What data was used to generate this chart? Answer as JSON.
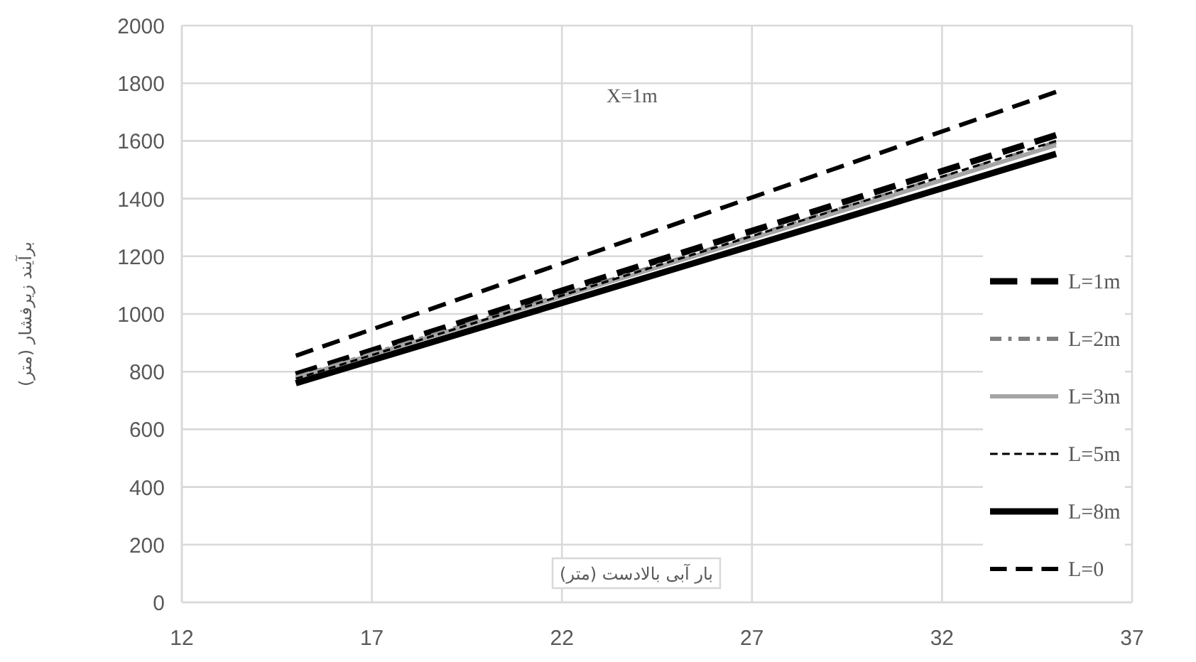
{
  "chart_data": {
    "type": "line",
    "xlabel": "بار آبی بالادست (متر)",
    "ylabel": "برآیند زیرفشار (متر)",
    "annotations": [
      "X=1m"
    ],
    "x": [
      15,
      35
    ],
    "series": [
      {
        "name": "L=1m",
        "color": "#000000",
        "line_style": "dashed",
        "values": [
          790,
          1620
        ]
      },
      {
        "name": "L=2m",
        "color": "#7f7f7f",
        "line_style": "dashed",
        "values": [
          780,
          1595
        ]
      },
      {
        "name": "L=3m",
        "color": "#a5a5a5",
        "line_style": "solid",
        "values": [
          778,
          1585
        ]
      },
      {
        "name": "L=5m",
        "color": "#000000",
        "line_style": "dashed",
        "values": [
          775,
          1600
        ]
      },
      {
        "name": "L=8m",
        "color": "#000000",
        "line_style": "solid",
        "values": [
          760,
          1555
        ]
      },
      {
        "name": "L=0",
        "color": "#000000",
        "line_style": "dashed",
        "values": [
          855,
          1770
        ]
      }
    ],
    "xlim": [
      12,
      37
    ],
    "xticks": [
      12,
      17,
      22,
      27,
      32,
      37
    ],
    "ylim": [
      0,
      2000
    ],
    "yticks": [
      0,
      200,
      400,
      600,
      800,
      1000,
      1200,
      1400,
      1600,
      1800,
      2000
    ],
    "grid": true,
    "legend": "right",
    "marker": "none"
  }
}
